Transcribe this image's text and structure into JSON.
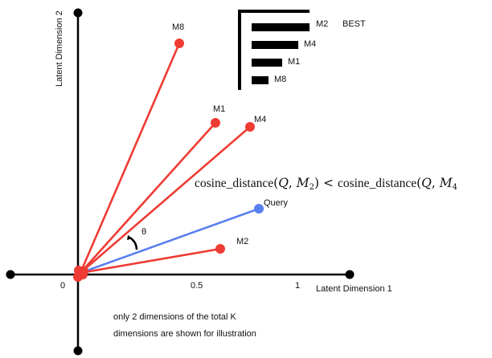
{
  "axes": {
    "x_label": "Latent Dimension 1",
    "y_label": "Latent Dimension 2",
    "x_ticks": [
      "0",
      "0.5",
      "1"
    ]
  },
  "vectors": [
    {
      "name": "M8",
      "kind": "model",
      "color": "#ee3b33"
    },
    {
      "name": "M1",
      "kind": "model",
      "color": "#ee3b33"
    },
    {
      "name": "M4",
      "kind": "model",
      "color": "#ee3b33"
    },
    {
      "name": "Query",
      "kind": "query",
      "color": "#5a7ff0"
    },
    {
      "name": "M2",
      "kind": "model",
      "color": "#ee3b33"
    }
  ],
  "angle_label": "θ",
  "formula": {
    "function": "cosine_distance",
    "left_args": [
      "Q",
      "M",
      "2"
    ],
    "operator": "<",
    "right_args": [
      "Q",
      "M",
      "4"
    ]
  },
  "ranking": {
    "best_label": "BEST",
    "items": [
      "M2",
      "M4",
      "M1",
      "M8"
    ]
  },
  "note": {
    "line1": "only 2 dimensions of the total K",
    "line2": "dimensions are shown for illustration"
  },
  "colors": {
    "model": "#ee3b33",
    "query": "#5a7ff0",
    "axis": "#000000"
  }
}
